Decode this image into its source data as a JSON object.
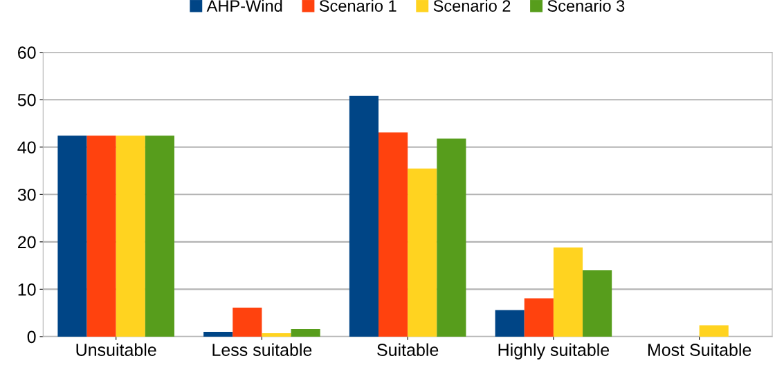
{
  "chart_data": {
    "type": "bar",
    "categories": [
      "Unsuitable",
      "Less suitable",
      "Suitable",
      "Highly suitable",
      "Most Suitable"
    ],
    "series": [
      {
        "name": "AHP-Wind",
        "color": "#004586",
        "values": [
          42.4,
          1.0,
          50.8,
          5.6,
          0
        ]
      },
      {
        "name": "Scenario 1",
        "color": "#ff420e",
        "values": [
          42.4,
          6.1,
          43.1,
          8.1,
          0
        ]
      },
      {
        "name": "Scenario 2",
        "color": "#ffd320",
        "values": [
          42.4,
          0.7,
          35.5,
          18.8,
          2.4
        ]
      },
      {
        "name": "Scenario 3",
        "color": "#579d1c",
        "values": [
          42.4,
          1.6,
          41.8,
          14.0,
          0
        ]
      }
    ],
    "ylim": [
      0,
      60
    ],
    "yticks": [
      0,
      10,
      20,
      30,
      40,
      50,
      60
    ],
    "grid": "y",
    "legend": "top"
  }
}
